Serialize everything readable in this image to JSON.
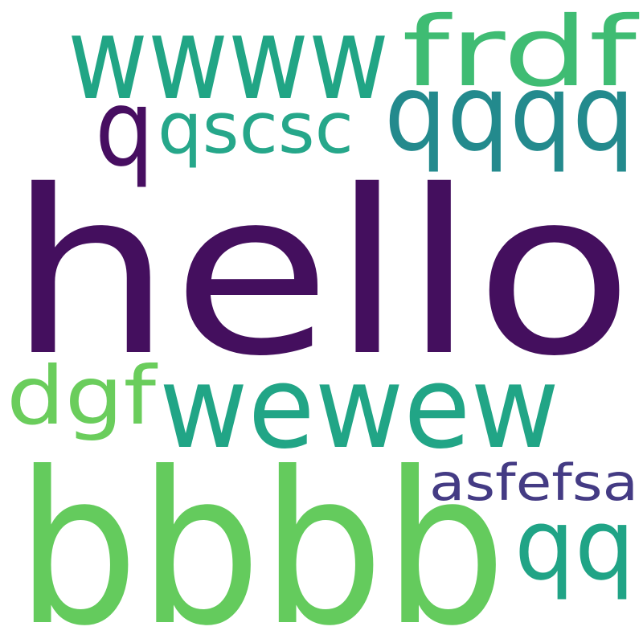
{
  "words": [
    {
      "text": "hello",
      "color": "#440f5e"
    },
    {
      "text": "bbbb",
      "color": "#64cb5d"
    },
    {
      "text": "wewew",
      "color": "#21a586"
    },
    {
      "text": "wwww",
      "color": "#21a585"
    },
    {
      "text": "frdf",
      "color": "#3fbc73"
    },
    {
      "text": "qqqq",
      "color": "#238a8d"
    },
    {
      "text": "qscsc",
      "color": "#26a78a"
    },
    {
      "text": "q",
      "color": "#470e61"
    },
    {
      "text": "dgf",
      "color": "#6acd5c"
    },
    {
      "text": "asfefsa",
      "color": "#443b84"
    },
    {
      "text": "qq",
      "color": "#20a486"
    }
  ]
}
